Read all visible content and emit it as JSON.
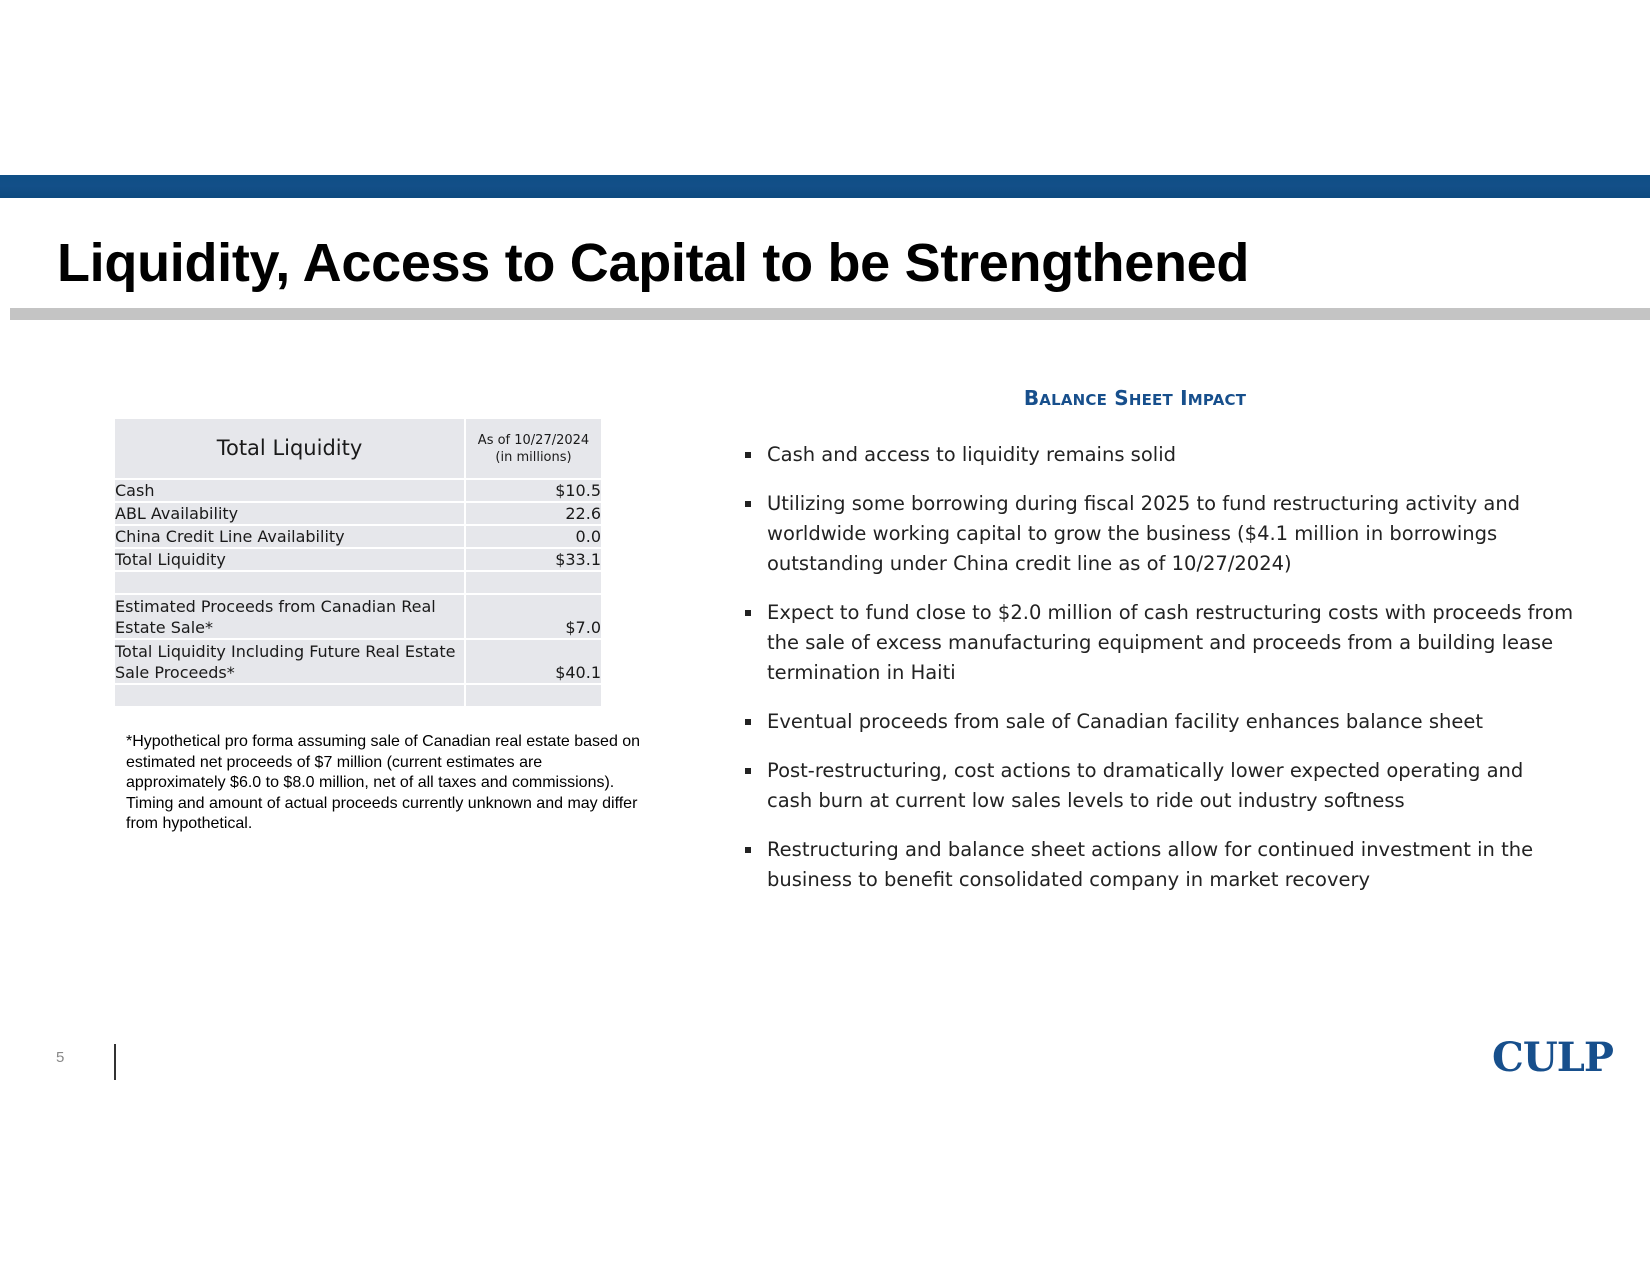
{
  "title": "Liquidity, Access to Capital to be Strengthened",
  "table": {
    "header_title": "Total Liquidity",
    "header_date": "As of 10/27/2024",
    "header_unit": "(in millions)",
    "rows": [
      {
        "label": "Cash",
        "value": "$10.5"
      },
      {
        "label": "ABL Availability",
        "value": "22.6"
      },
      {
        "label": "China Credit Line Availability",
        "value": "0.0"
      },
      {
        "label": "Total Liquidity",
        "value": "$33.1"
      },
      {
        "label": "",
        "value": ""
      },
      {
        "label": "Estimated Proceeds from Canadian Real Estate Sale*",
        "value": "$7.0"
      },
      {
        "label": "Total Liquidity Including Future Real Estate Sale Proceeds*",
        "value": "$40.1"
      },
      {
        "label": "",
        "value": ""
      }
    ]
  },
  "footnote": "*Hypothetical pro forma assuming sale of Canadian real estate based on estimated net proceeds of $7 million (current estimates are approximately $6.0 to $8.0 million, net of all taxes and commissions). Timing and amount of actual proceeds currently unknown and may differ from hypothetical.",
  "balance_sheet": {
    "heading": "Balance Sheet Impact",
    "bullets": [
      [
        "Cash and access to liquidity remains solid"
      ],
      [
        "Utilizing some borrowing during fiscal 2025 to fund restructuring activity and",
        "worldwide working capital to grow the business ($4.1 million in borrowings",
        "outstanding under China credit line as of 10/27/2024)"
      ],
      [
        "Expect to fund close to $2.0 million of cash restructuring costs with proceeds from",
        "the sale of excess manufacturing equipment and proceeds from a building lease",
        "termination in Haiti"
      ],
      [
        "Eventual proceeds from sale of Canadian facility enhances balance sheet"
      ],
      [
        "Post-restructuring, cost actions to dramatically lower expected operating and",
        "cash burn at current low sales levels to ride out industry softness"
      ],
      [
        "Restructuring and balance sheet actions allow for continued investment in the",
        "business to benefit consolidated company in market recovery"
      ]
    ]
  },
  "footer": {
    "page_number": "5",
    "logo": "CULP"
  },
  "colors": {
    "brand_blue": "#174f8c",
    "header_bar": "#0f4f86",
    "rule_grey": "#c4c4c4",
    "table_bg": "#e6e7eb"
  }
}
